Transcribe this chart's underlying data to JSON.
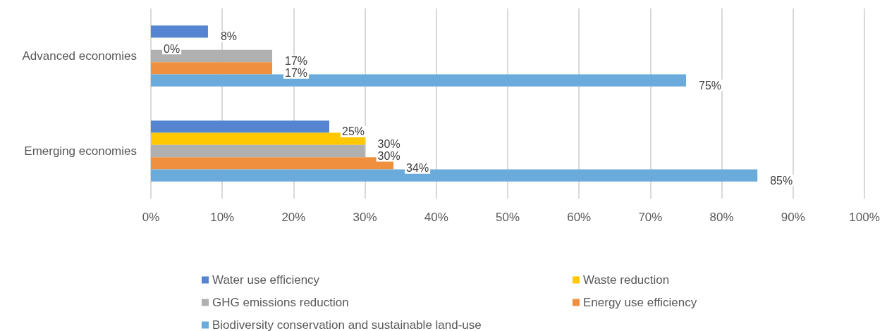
{
  "chart_data": {
    "type": "bar",
    "orientation": "horizontal",
    "categories": [
      "Advanced economies",
      "Emerging economies"
    ],
    "series": [
      {
        "name": "Water use efficiency",
        "color": "#5585d0",
        "values": [
          8,
          25
        ],
        "value_labels": [
          "8%",
          "25%"
        ]
      },
      {
        "name": "Waste reduction",
        "color": "#ffc800",
        "values": [
          0,
          30
        ],
        "value_labels": [
          "0%",
          "30%"
        ]
      },
      {
        "name": "GHG emissions reduction",
        "color": "#b0b0b0",
        "values": [
          17,
          30
        ],
        "value_labels": [
          "17%",
          "30%"
        ]
      },
      {
        "name": "Energy use efficiency",
        "color": "#f0903f",
        "values": [
          17,
          34
        ],
        "value_labels": [
          "17%",
          "34%"
        ]
      },
      {
        "name": "Biodiversity conservation and sustainable land-use",
        "color": "#6aabdc",
        "values": [
          75,
          85
        ],
        "value_labels": [
          "75%",
          "85%"
        ]
      }
    ],
    "xlim": [
      0,
      100
    ],
    "xticks": [
      {
        "value": 0,
        "label": "0%"
      },
      {
        "value": 10,
        "label": "10%"
      },
      {
        "value": 20,
        "label": "20%"
      },
      {
        "value": 30,
        "label": "30%"
      },
      {
        "value": 40,
        "label": "40%"
      },
      {
        "value": 50,
        "label": "50%"
      },
      {
        "value": 60,
        "label": "60%"
      },
      {
        "value": 70,
        "label": "70%"
      },
      {
        "value": 80,
        "label": "80%"
      },
      {
        "value": 90,
        "label": "90%"
      },
      {
        "value": 100,
        "label": "100%"
      }
    ],
    "grid": "x",
    "legend": "bottom"
  }
}
